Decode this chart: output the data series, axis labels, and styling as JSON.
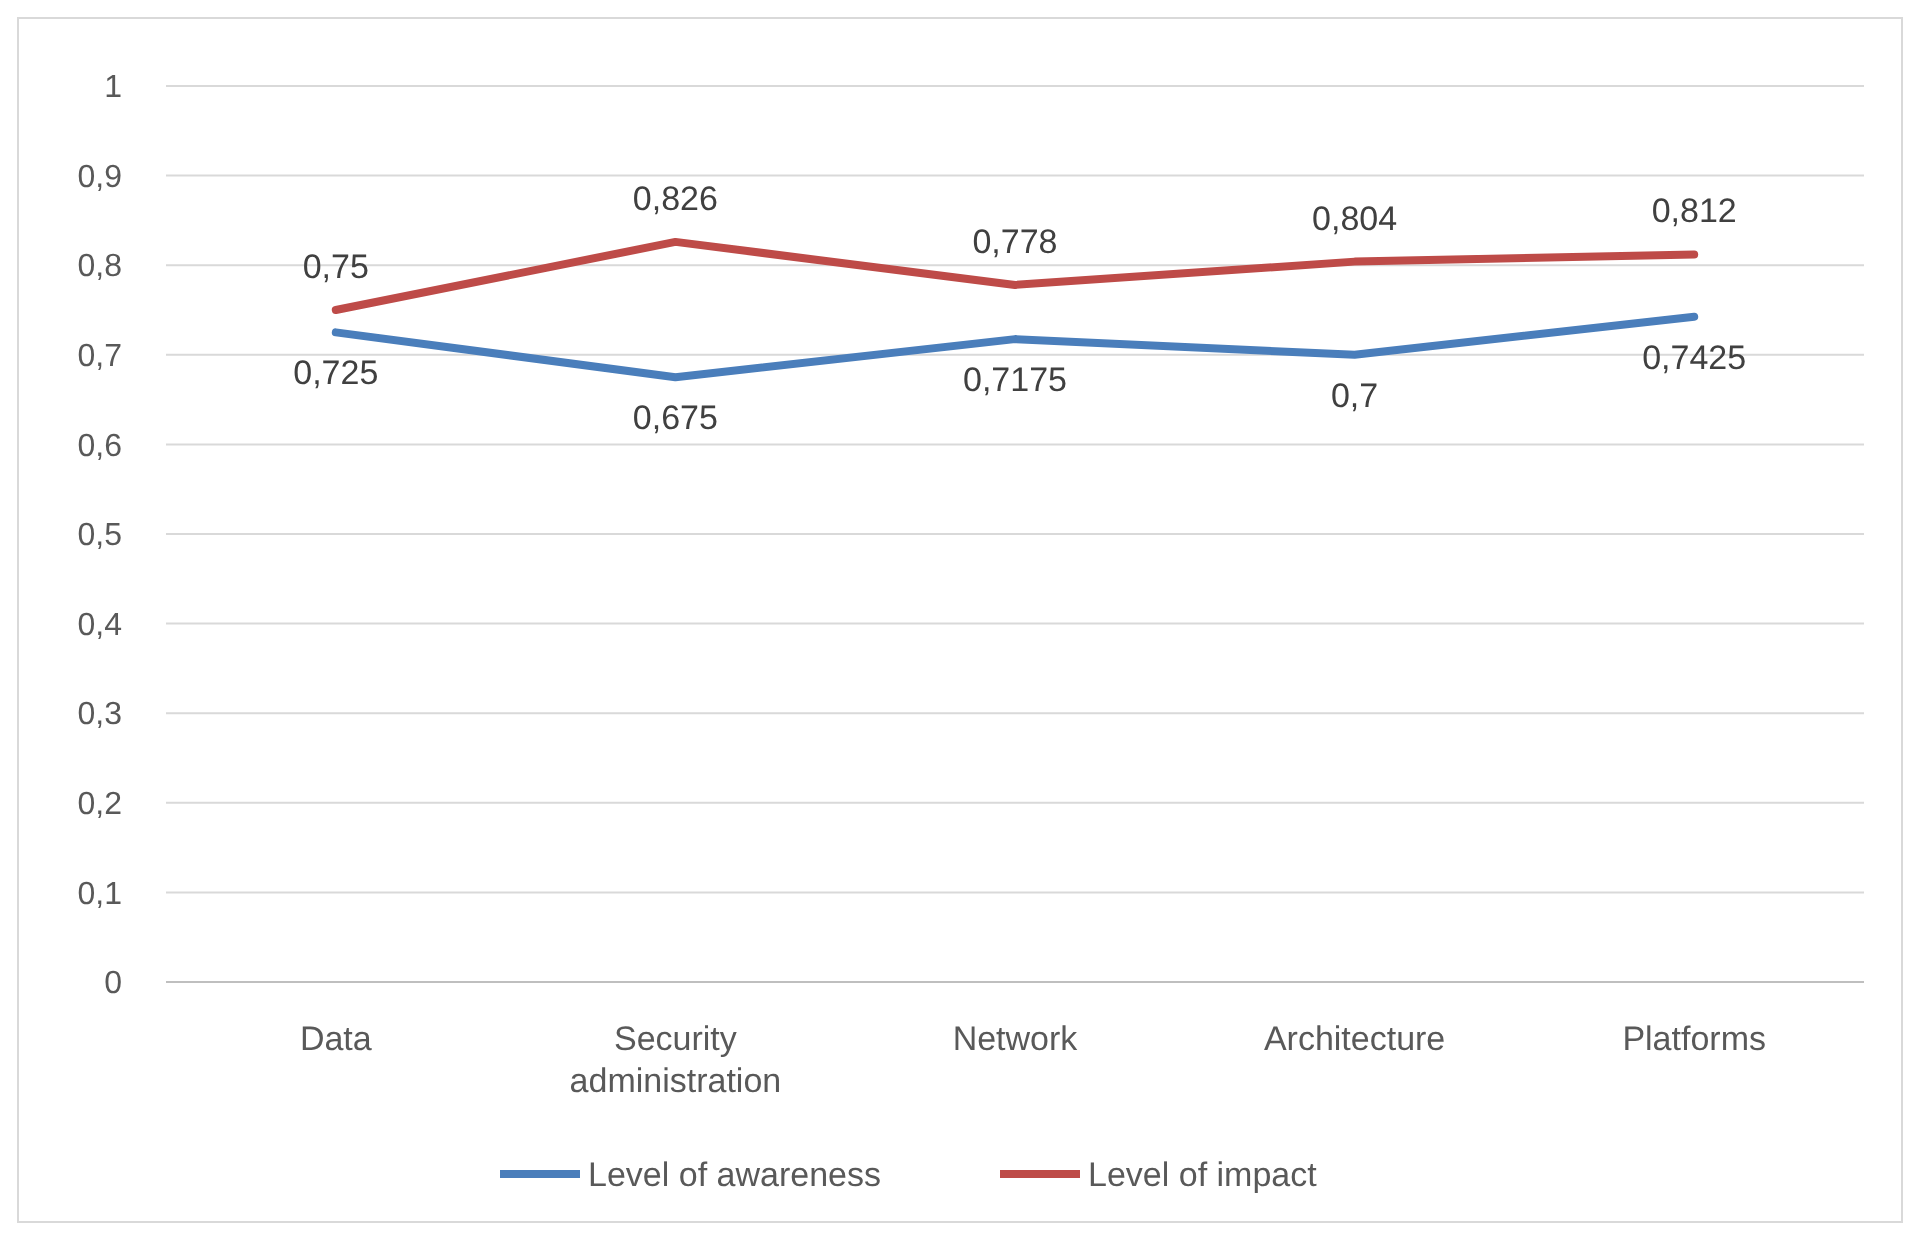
{
  "chart_data": {
    "type": "line",
    "categories": [
      "Data",
      "Security administration",
      "Network",
      "Architecture",
      "Platforms"
    ],
    "series": [
      {
        "name": "Level of awareness",
        "color": "#4a7ebb",
        "values": [
          0.725,
          0.675,
          0.7175,
          0.7,
          0.7425
        ],
        "value_labels": [
          "0,725",
          "0,675",
          "0,7175",
          "0,7",
          "0,7425"
        ]
      },
      {
        "name": "Level of impact",
        "color": "#be4b48",
        "values": [
          0.75,
          0.826,
          0.778,
          0.804,
          0.812
        ],
        "value_labels": [
          "0,75",
          "0,826",
          "0,778",
          "0,804",
          "0,812"
        ]
      }
    ],
    "ylim": [
      0,
      1
    ],
    "yticks": [
      0,
      {
        "value": 0.1,
        "label": "0,1"
      },
      {
        "value": 0.2,
        "label": "0,2"
      },
      {
        "value": 0.3,
        "label": "0,3"
      },
      {
        "value": 0.4,
        "label": "0,4"
      },
      {
        "value": 0.5,
        "label": "0,5"
      },
      {
        "value": 0.6,
        "label": "0,6"
      },
      {
        "value": 0.7,
        "label": "0,7"
      },
      {
        "value": 0.8,
        "label": "0,8"
      },
      {
        "value": 0.9,
        "label": "0,9"
      },
      1
    ],
    "grid": "y",
    "legend": "bottom",
    "marker": "none",
    "line_style": "solid"
  }
}
